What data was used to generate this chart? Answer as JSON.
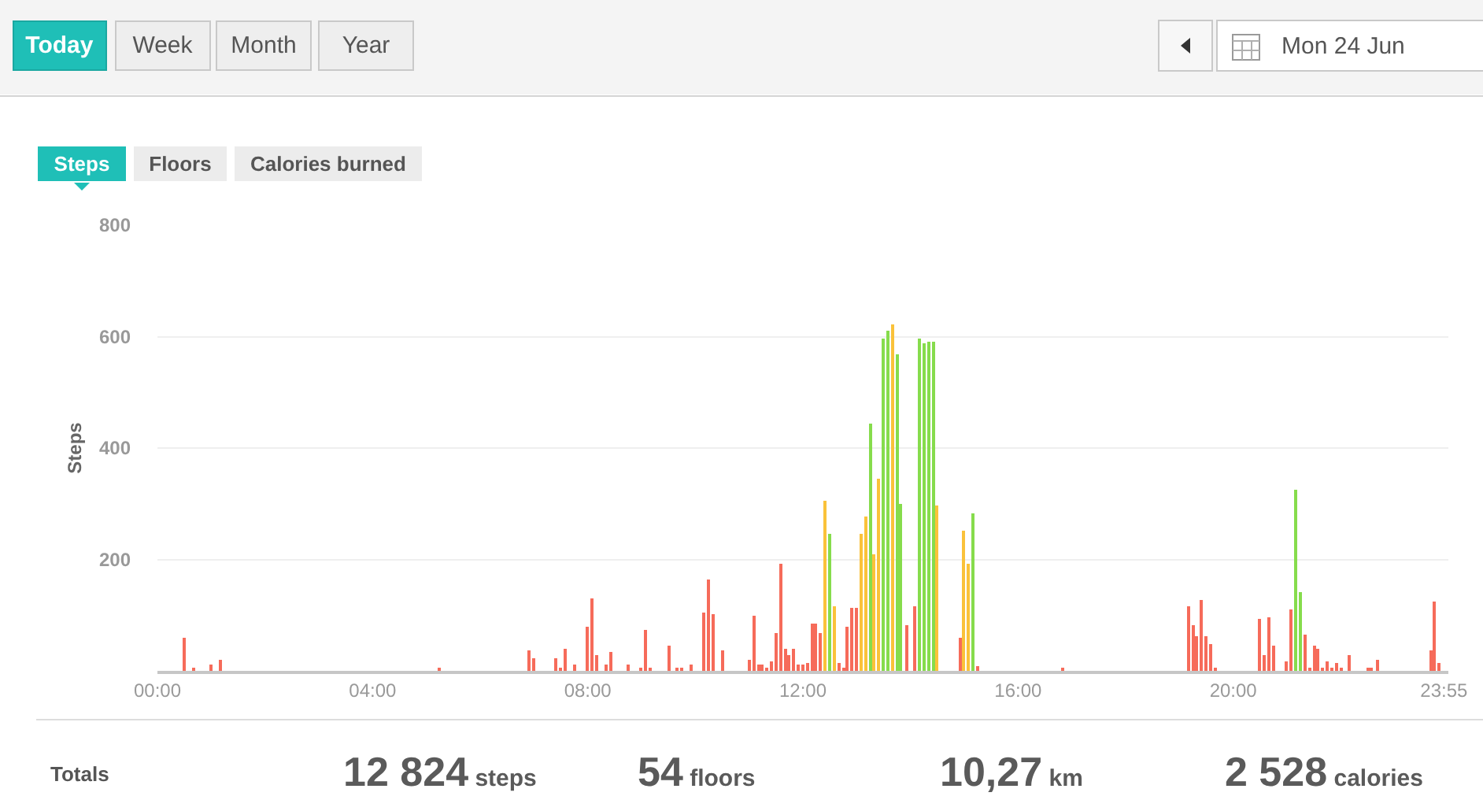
{
  "chart_data": {
    "type": "bar",
    "ylabel": "Steps",
    "xlim": [
      0,
      24
    ],
    "xticks": [
      {
        "value": 0,
        "label": "00:00"
      },
      {
        "value": 4,
        "label": "04:00"
      },
      {
        "value": 8,
        "label": "08:00"
      },
      {
        "value": 12,
        "label": "12:00"
      },
      {
        "value": 16,
        "label": "16:00"
      },
      {
        "value": 20,
        "label": "20:00"
      },
      {
        "value": 23.917,
        "label": "23:55"
      }
    ],
    "ylim": [
      0,
      800
    ],
    "yticks": [
      200,
      400,
      600,
      800
    ],
    "grid": "y",
    "series": [
      {
        "color": "#f66b5a",
        "x": [
          0.5,
          0.67,
          1,
          1.17,
          5.25,
          6.92,
          7,
          7.42,
          7.5,
          7.58,
          7.75,
          8,
          8.08,
          8.17,
          8.33,
          8.42,
          8.75,
          9,
          9.08,
          9.17,
          9.5,
          9.67,
          9.75,
          9.92,
          10.17,
          10.25,
          10.33,
          10.5,
          11,
          11.08,
          11.17,
          11.25,
          11.33,
          11.42,
          11.5,
          11.58,
          11.67,
          11.75,
          11.83,
          11.92,
          12,
          12.08,
          12.17,
          12.25,
          12.33,
          12.67,
          12.75,
          12.83,
          12.92,
          13,
          13.92,
          14.08,
          14.92,
          15.25,
          16.83,
          19.17,
          19.25,
          19.33,
          19.42,
          19.5,
          19.58,
          19.67,
          20.5,
          20.58,
          20.67,
          20.75,
          21,
          21.08,
          21.33,
          21.42,
          21.5,
          21.58,
          21.67,
          21.75,
          21.83,
          21.92,
          22,
          22.17,
          22.5,
          22.58,
          22.67,
          23.67,
          23.75,
          23.83
        ],
        "values": [
          58,
          6,
          10,
          21,
          6,
          38,
          24,
          24,
          4,
          41,
          10,
          78,
          131,
          28,
          10,
          35,
          10,
          4,
          74,
          4,
          44,
          6,
          6,
          10,
          105,
          163,
          101,
          38,
          21,
          98,
          10,
          10,
          4,
          17,
          68,
          191,
          40,
          27,
          40,
          10,
          10,
          13,
          86,
          86,
          67,
          13,
          5,
          78,
          114,
          114,
          81,
          116,
          58,
          9,
          4,
          117,
          81,
          61,
          127,
          61,
          47,
          4,
          92,
          28,
          95,
          44,
          16,
          111,
          64,
          4,
          44,
          41,
          7,
          16,
          4,
          13,
          4,
          29,
          4,
          4,
          19,
          38,
          124,
          13
        ]
      },
      {
        "color": "#fac23a",
        "x": [
          12.42,
          12.58,
          13.08,
          13.17,
          13.33,
          13.42,
          13.67,
          14.5,
          15,
          15.08
        ],
        "values": [
          304,
          116,
          246,
          276,
          209,
          346,
          622,
          297,
          251,
          191
        ]
      },
      {
        "color": "#86dc4c",
        "x": [
          12.5,
          13.25,
          13.5,
          13.58,
          13.75,
          13.83,
          14.17,
          14.25,
          14.33,
          14.42,
          15.17,
          21.17,
          21.25
        ],
        "values": [
          246,
          445,
          597,
          612,
          567,
          300,
          597,
          588,
          592,
          590,
          284,
          325,
          141
        ]
      }
    ],
    "annotations": [
      "Today",
      "Week",
      "Month",
      "Year",
      "Mon 24 Jun",
      "Steps",
      "Floors",
      "Calories burned",
      "Totals",
      "12 824 steps",
      "54 floors",
      "10,27 km",
      "2 528 calories"
    ]
  }
}
